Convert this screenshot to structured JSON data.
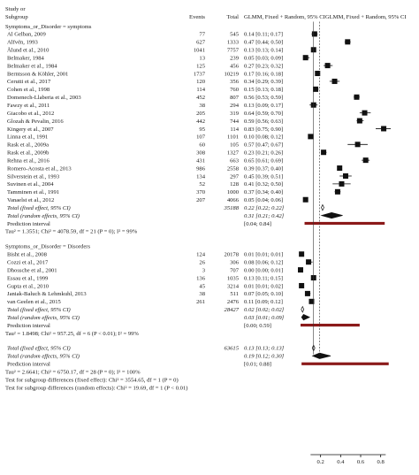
{
  "header": {
    "study_line1": "Study or",
    "study_line2": "Subgroup",
    "events": "Events",
    "total": "Total",
    "estimate": "GLMM, Fixed + Random, 95% CIGLMM, Fixed + Random, 95% CI"
  },
  "colors": {
    "square": "#111111",
    "diamond": "#111111",
    "prediction_bar": "#8b1a1a",
    "axis": "#111111"
  },
  "chart_data": {
    "type": "forest",
    "xlim": [
      0,
      0.9
    ],
    "xticks": [
      0.2,
      0.4,
      0.6,
      0.8
    ],
    "xtick_labels": [
      "0.2",
      "0.4",
      "0.6",
      "0.8"
    ],
    "reference_lines": {
      "fixed_effect": 0.13,
      "random_effect": 0.19
    },
    "rows": [
      {
        "kind": "group",
        "label": "Symptoms_or_Disorder = symptoms"
      },
      {
        "kind": "study",
        "label": "Al Gelban, 2009",
        "events": "77",
        "total": "545",
        "est": 0.14,
        "lo": 0.11,
        "hi": 0.17,
        "ci_text": "0.14 [0.11; 0.17]"
      },
      {
        "kind": "study",
        "label": "Alfvén, 1993",
        "events": "627",
        "total": "1333",
        "est": 0.47,
        "lo": 0.44,
        "hi": 0.5,
        "ci_text": "0.47 [0.44; 0.50]"
      },
      {
        "kind": "study",
        "label": "Ålund et al., 2010",
        "events": "1041",
        "total": "7757",
        "est": 0.13,
        "lo": 0.13,
        "hi": 0.14,
        "ci_text": "0.13 [0.13; 0.14]"
      },
      {
        "kind": "study",
        "label": "Belmaker, 1984",
        "events": "13",
        "total": "239",
        "est": 0.05,
        "lo": 0.03,
        "hi": 0.09,
        "ci_text": "0.05 [0.03; 0.09]"
      },
      {
        "kind": "study",
        "label": "Belmaker et al., 1984",
        "events": "125",
        "total": "456",
        "est": 0.27,
        "lo": 0.23,
        "hi": 0.32,
        "ci_text": "0.27 [0.23; 0.32]"
      },
      {
        "kind": "study",
        "label": "Berntsson & Köhler, 2001",
        "events": "1737",
        "total": "10219",
        "est": 0.17,
        "lo": 0.16,
        "hi": 0.18,
        "ci_text": "0.17 [0.16; 0.18]"
      },
      {
        "kind": "study",
        "label": "Cerutti et al., 2017",
        "events": "120",
        "total": "356",
        "est": 0.34,
        "lo": 0.29,
        "hi": 0.39,
        "ci_text": "0.34 [0.29; 0.39]"
      },
      {
        "kind": "study",
        "label": "Cohen et al., 1998",
        "events": "114",
        "total": "760",
        "est": 0.15,
        "lo": 0.13,
        "hi": 0.18,
        "ci_text": "0.15 [0.13; 0.18]"
      },
      {
        "kind": "study",
        "label": "Domenech-Llaberia et al., 2003",
        "events": "452",
        "total": "807",
        "est": 0.56,
        "lo": 0.53,
        "hi": 0.59,
        "ci_text": "0.56 [0.53; 0.59]"
      },
      {
        "kind": "study",
        "label": "Fawzy et al., 2011",
        "events": "38",
        "total": "294",
        "est": 0.13,
        "lo": 0.09,
        "hi": 0.17,
        "ci_text": "0.13 [0.09; 0.17]"
      },
      {
        "kind": "study",
        "label": "Giacobo et al., 2012",
        "events": "205",
        "total": "319",
        "est": 0.64,
        "lo": 0.59,
        "hi": 0.7,
        "ci_text": "0.64 [0.59; 0.70]"
      },
      {
        "kind": "study",
        "label": "Glozah & Pevalin, 2016",
        "events": "442",
        "total": "744",
        "est": 0.59,
        "lo": 0.56,
        "hi": 0.63,
        "ci_text": "0.59 [0.56; 0.63]"
      },
      {
        "kind": "study",
        "label": "Kingery et al., 2007",
        "events": "95",
        "total": "114",
        "est": 0.83,
        "lo": 0.75,
        "hi": 0.9,
        "ci_text": "0.83 [0.75; 0.90]"
      },
      {
        "kind": "study",
        "label": "Linna et al., 1991",
        "events": "107",
        "total": "1101",
        "est": 0.1,
        "lo": 0.08,
        "hi": 0.12,
        "ci_text": "0.10 [0.08; 0.12]"
      },
      {
        "kind": "study",
        "label": "Rask et al., 2009a",
        "events": "60",
        "total": "105",
        "est": 0.57,
        "lo": 0.47,
        "hi": 0.67,
        "ci_text": "0.57 [0.47; 0.67]"
      },
      {
        "kind": "study",
        "label": "Rask et al., 2009b",
        "events": "308",
        "total": "1327",
        "est": 0.23,
        "lo": 0.21,
        "hi": 0.26,
        "ci_text": "0.23 [0.21; 0.26]"
      },
      {
        "kind": "study",
        "label": "Rehna et al., 2016",
        "events": "431",
        "total": "663",
        "est": 0.65,
        "lo": 0.61,
        "hi": 0.69,
        "ci_text": "0.65 [0.61; 0.69]"
      },
      {
        "kind": "study",
        "label": "Romero-Acosta et al., 2013",
        "events": "986",
        "total": "2558",
        "est": 0.39,
        "lo": 0.37,
        "hi": 0.4,
        "ci_text": "0.39 [0.37; 0.40]"
      },
      {
        "kind": "study",
        "label": "Silverstein et al., 1993",
        "events": "134",
        "total": "297",
        "est": 0.45,
        "lo": 0.39,
        "hi": 0.51,
        "ci_text": "0.45 [0.39; 0.51]"
      },
      {
        "kind": "study",
        "label": "Suvinen et al., 2004",
        "events": "52",
        "total": "128",
        "est": 0.41,
        "lo": 0.32,
        "hi": 0.5,
        "ci_text": "0.41 [0.32; 0.50]"
      },
      {
        "kind": "study",
        "label": "Tamminen et al., 1991",
        "events": "370",
        "total": "1000",
        "est": 0.37,
        "lo": 0.34,
        "hi": 0.4,
        "ci_text": "0.37 [0.34; 0.40]"
      },
      {
        "kind": "study",
        "label": "Vanaelst et al., 2012",
        "events": "207",
        "total": "4066",
        "est": 0.05,
        "lo": 0.04,
        "hi": 0.06,
        "ci_text": "0.05 [0.04; 0.06]"
      },
      {
        "kind": "fixed",
        "label": "Total (fixed effect, 95% CI)",
        "total": "35188",
        "est": 0.22,
        "lo": 0.22,
        "hi": 0.22,
        "ci_text": "0.22 [0.22; 0.22]"
      },
      {
        "kind": "random",
        "label": "Total (random effects, 95% CI)",
        "est": 0.31,
        "lo": 0.21,
        "hi": 0.42,
        "ci_text": "0.31 [0.21; 0.42]"
      },
      {
        "kind": "prediction",
        "label": "Prediction interval",
        "lo": 0.04,
        "hi": 0.84,
        "ci_text": "[0.04; 0.84]"
      },
      {
        "kind": "note",
        "label": "Tau² = 1.3551; Chi² = 4078.59, df = 21 (P = 0); I² = 99%"
      },
      {
        "kind": "gap"
      },
      {
        "kind": "group",
        "label": "Symptoms_or_Disorder = Disorders"
      },
      {
        "kind": "study",
        "label": "Bisht et al., 2008",
        "events": "124",
        "total": "20178",
        "est": 0.01,
        "lo": 0.01,
        "hi": 0.01,
        "ci_text": "0.01 [0.01; 0.01]"
      },
      {
        "kind": "study",
        "label": "Cozzi et al., 2017",
        "events": "26",
        "total": "306",
        "est": 0.08,
        "lo": 0.06,
        "hi": 0.12,
        "ci_text": "0.08 [0.06; 0.12]"
      },
      {
        "kind": "study",
        "label": "Dhossche et al., 2001",
        "events": "3",
        "total": "707",
        "est": 0.0,
        "lo": 0.0,
        "hi": 0.01,
        "ci_text": "0.00 [0.00; 0.01]"
      },
      {
        "kind": "study",
        "label": "Essau et al., 1999",
        "events": "136",
        "total": "1035",
        "est": 0.13,
        "lo": 0.11,
        "hi": 0.15,
        "ci_text": "0.13 [0.11; 0.15]"
      },
      {
        "kind": "study",
        "label": "Gupta et al., 2010",
        "events": "45",
        "total": "3214",
        "est": 0.01,
        "lo": 0.01,
        "hi": 0.02,
        "ci_text": "0.01 [0.01; 0.02]"
      },
      {
        "kind": "study",
        "label": "Janiak-Baluch & Lehmkuhl, 2013",
        "events": "38",
        "total": "511",
        "est": 0.07,
        "lo": 0.05,
        "hi": 0.1,
        "ci_text": "0.07 [0.05; 0.10]"
      },
      {
        "kind": "study",
        "label": "van Geelen et al., 2015",
        "events": "261",
        "total": "2476",
        "est": 0.11,
        "lo": 0.09,
        "hi": 0.12,
        "ci_text": "0.11 [0.09; 0.12]"
      },
      {
        "kind": "fixed",
        "label": "Total (fixed effect, 95% CI)",
        "total": "28427",
        "est": 0.02,
        "lo": 0.02,
        "hi": 0.02,
        "ci_text": "0.02 [0.02; 0.02]"
      },
      {
        "kind": "random",
        "label": "Total (random effects, 95% CI)",
        "est": 0.03,
        "lo": 0.01,
        "hi": 0.09,
        "ci_text": "0.03 [0.01; 0.09]"
      },
      {
        "kind": "prediction",
        "label": "Prediction interval",
        "lo": 0.0,
        "hi": 0.59,
        "ci_text": "[0.00; 0.59]"
      },
      {
        "kind": "note",
        "label": "Tau² = 1.8498; Chi² = 957.25, df = 6 (P < 0.01); I² = 99%"
      },
      {
        "kind": "gap"
      },
      {
        "kind": "fixed",
        "label": "Total (fixed effect, 95% CI)",
        "total": "63615",
        "est": 0.13,
        "lo": 0.13,
        "hi": 0.13,
        "ci_text": "0.13 [0.13; 0.13]"
      },
      {
        "kind": "random",
        "label": "Total (random effects, 95% CI)",
        "est": 0.19,
        "lo": 0.12,
        "hi": 0.3,
        "ci_text": "0.19 [0.12; 0.30]"
      },
      {
        "kind": "prediction",
        "label": "Prediction interval",
        "lo": 0.01,
        "hi": 0.88,
        "ci_text": "[0.01; 0.88]"
      },
      {
        "kind": "note",
        "label": "Tau² = 2.6641; Chi² = 6750.17, df = 28 (P = 0); I² = 100%"
      },
      {
        "kind": "note",
        "label": "Test for subgroup differences (fixed effect): Chi² = 3554.65, df = 1 (P = 0)"
      },
      {
        "kind": "note",
        "label": "Test for subgroup differences (random effects): Chi² = 19.69, df = 1 (P < 0.01)"
      }
    ]
  }
}
